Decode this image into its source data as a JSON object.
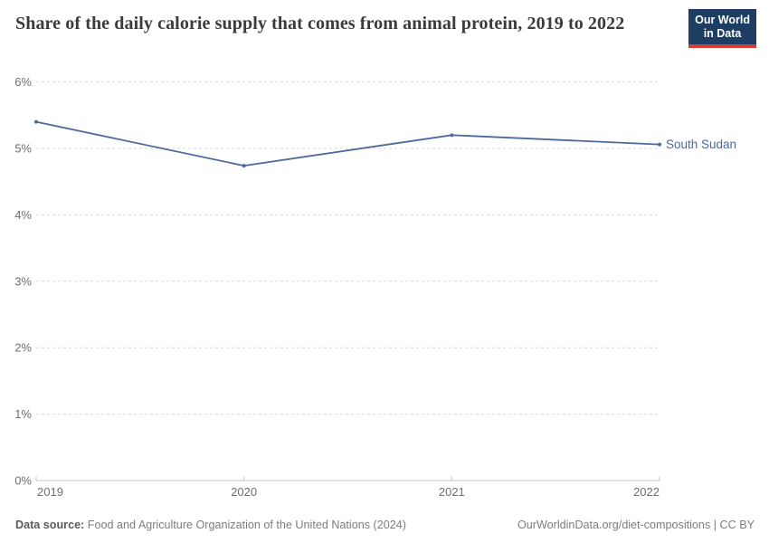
{
  "header": {
    "title": "Share of the daily calorie supply that comes from animal protein, 2019 to 2022",
    "logo": {
      "line1": "Our World",
      "line2": "in Data",
      "bg_color": "#1d3d63",
      "accent_color": "#d73c32"
    }
  },
  "chart_data": {
    "type": "line",
    "title": "Share of the daily calorie supply that comes from animal protein, 2019 to 2022",
    "x": [
      2019,
      2020,
      2021,
      2022
    ],
    "series": [
      {
        "name": "South Sudan",
        "values": [
          5.4,
          4.74,
          5.2,
          5.06
        ],
        "color": "#4c6a9c"
      }
    ],
    "ylim": [
      0,
      6
    ],
    "yticks": [
      0,
      1,
      2,
      3,
      4,
      5,
      6
    ],
    "ytick_suffix": "%",
    "xlabel": "",
    "ylabel": "",
    "grid": "horizontal-dashed",
    "legend_position": "end-of-line"
  },
  "footer": {
    "source_label": "Data source:",
    "source_text": "Food and Agriculture Organization of the United Nations (2024)",
    "credit": "OurWorldinData.org/diet-compositions | CC BY"
  },
  "colors": {
    "grid": "#d9d9d9",
    "axis": "#c4c4c4",
    "tick_label": "#6e6e6e",
    "title": "#3b3b3b",
    "footer_text": "#7d7d7d",
    "series_label": "#4c6a9c"
  }
}
